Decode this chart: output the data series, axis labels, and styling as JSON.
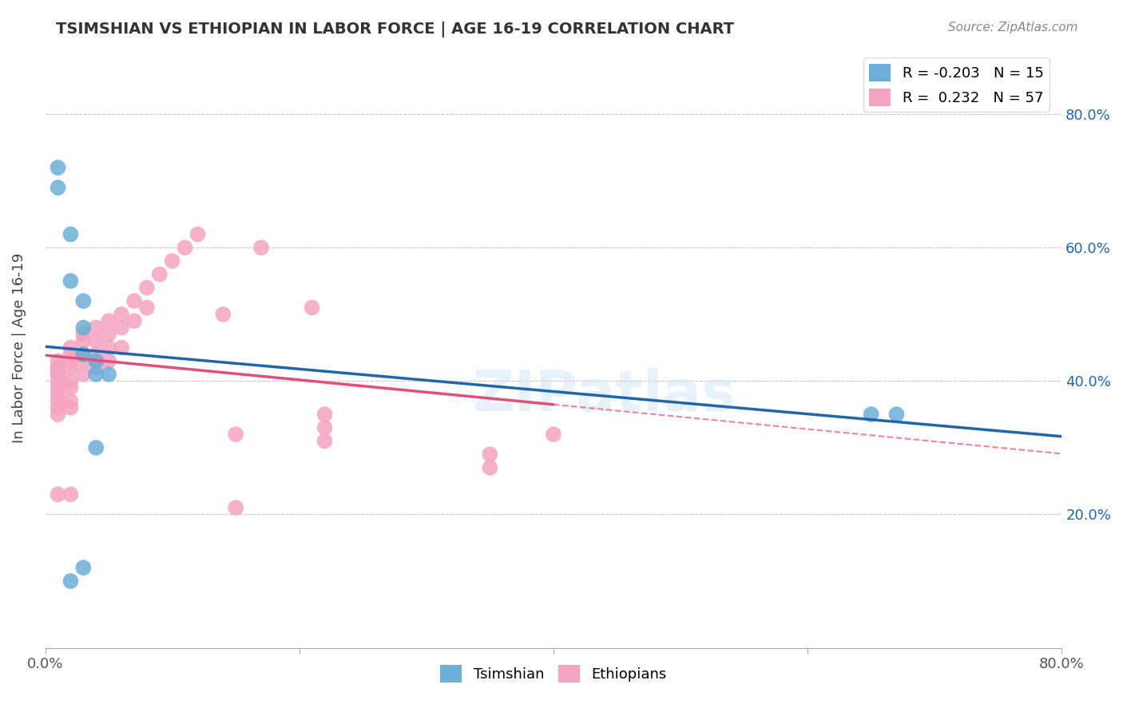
{
  "title": "TSIMSHIAN VS ETHIOPIAN IN LABOR FORCE | AGE 16-19 CORRELATION CHART",
  "source": "Source: ZipAtlas.com",
  "xlabel_bottom": "",
  "ylabel": "In Labor Force | Age 16-19",
  "xlim": [
    0.0,
    0.8
  ],
  "ylim": [
    0.0,
    0.9
  ],
  "xticks": [
    0.0,
    0.2,
    0.4,
    0.6,
    0.8
  ],
  "yticks": [
    0.2,
    0.4,
    0.6,
    0.8
  ],
  "xtick_labels": [
    "0.0%",
    "",
    "",
    "",
    "80.0%"
  ],
  "ytick_labels": [
    "20.0%",
    "40.0%",
    "60.0%",
    "80.0%"
  ],
  "legend_blue_label": "R = -0.203   N = 15",
  "legend_pink_label": "R =  0.232   N = 57",
  "watermark": "ZIPatlas",
  "blue_color": "#6baed6",
  "pink_color": "#f4a4c0",
  "blue_line_color": "#2166ac",
  "pink_line_color": "#e0507a",
  "tsimshian_x": [
    0.01,
    0.01,
    0.02,
    0.02,
    0.03,
    0.03,
    0.03,
    0.04,
    0.04,
    0.05,
    0.65,
    0.67,
    0.04,
    0.02,
    0.03
  ],
  "tsimshian_y": [
    0.72,
    0.69,
    0.62,
    0.55,
    0.52,
    0.48,
    0.44,
    0.43,
    0.41,
    0.41,
    0.35,
    0.35,
    0.3,
    0.1,
    0.12
  ],
  "ethiopian_x": [
    0.01,
    0.01,
    0.01,
    0.01,
    0.01,
    0.01,
    0.01,
    0.01,
    0.01,
    0.01,
    0.01,
    0.02,
    0.02,
    0.02,
    0.02,
    0.02,
    0.02,
    0.02,
    0.02,
    0.03,
    0.03,
    0.03,
    0.03,
    0.03,
    0.04,
    0.04,
    0.04,
    0.04,
    0.04,
    0.05,
    0.05,
    0.05,
    0.05,
    0.06,
    0.06,
    0.06,
    0.07,
    0.07,
    0.08,
    0.08,
    0.09,
    0.1,
    0.11,
    0.12,
    0.14,
    0.17,
    0.22,
    0.22,
    0.22,
    0.35,
    0.35,
    0.01,
    0.02,
    0.15,
    0.21,
    0.4,
    0.15
  ],
  "ethiopian_y": [
    0.41,
    0.42,
    0.42,
    0.43,
    0.41,
    0.4,
    0.39,
    0.38,
    0.37,
    0.36,
    0.35,
    0.45,
    0.44,
    0.43,
    0.42,
    0.4,
    0.39,
    0.37,
    0.36,
    0.47,
    0.46,
    0.44,
    0.43,
    0.41,
    0.48,
    0.46,
    0.44,
    0.43,
    0.42,
    0.49,
    0.47,
    0.45,
    0.43,
    0.5,
    0.48,
    0.45,
    0.52,
    0.49,
    0.54,
    0.51,
    0.56,
    0.58,
    0.6,
    0.62,
    0.5,
    0.6,
    0.35,
    0.33,
    0.31,
    0.29,
    0.27,
    0.23,
    0.23,
    0.32,
    0.51,
    0.32,
    0.21
  ]
}
